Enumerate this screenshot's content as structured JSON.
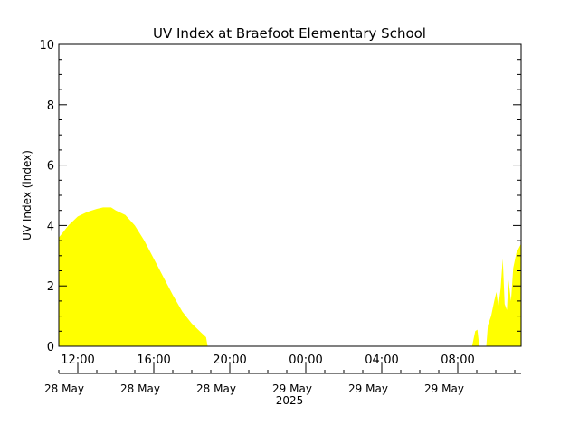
{
  "chart_data": {
    "type": "area",
    "title": "UV Index at Braefoot Elementary School",
    "ylabel": "UV Index (index)",
    "year_label": "2025",
    "ylim": [
      0,
      10
    ],
    "y_ticks": [
      0,
      2,
      4,
      6,
      8,
      10
    ],
    "x_range": [
      "2025-05-28T11:00",
      "2025-05-29T11:20"
    ],
    "x_ticks": [
      {
        "label": "12:00",
        "date": "28 May",
        "t": "2025-05-28T12:00"
      },
      {
        "label": "16:00",
        "date": "28 May",
        "t": "2025-05-28T16:00"
      },
      {
        "label": "20:00",
        "date": "28 May",
        "t": "2025-05-28T20:00"
      },
      {
        "label": "00:00",
        "date": "29 May",
        "t": "2025-05-29T00:00"
      },
      {
        "label": "04:00",
        "date": "29 May",
        "t": "2025-05-29T04:00"
      },
      {
        "label": "08:00",
        "date": "29 May",
        "t": "2025-05-29T08:00"
      }
    ],
    "grid": false,
    "fill_color": "#ffff00",
    "series": [
      {
        "points": [
          [
            "2025-05-28T11:00",
            3.6
          ],
          [
            "2025-05-28T11:15",
            3.8
          ],
          [
            "2025-05-28T11:30",
            4.0
          ],
          [
            "2025-05-28T11:45",
            4.15
          ],
          [
            "2025-05-28T12:00",
            4.3
          ],
          [
            "2025-05-28T12:30",
            4.45
          ],
          [
            "2025-05-28T13:00",
            4.55
          ],
          [
            "2025-05-28T13:20",
            4.6
          ],
          [
            "2025-05-28T13:45",
            4.6
          ],
          [
            "2025-05-28T14:00",
            4.5
          ],
          [
            "2025-05-28T14:30",
            4.35
          ],
          [
            "2025-05-28T15:00",
            4.0
          ],
          [
            "2025-05-28T15:30",
            3.5
          ],
          [
            "2025-05-28T16:00",
            2.9
          ],
          [
            "2025-05-28T16:30",
            2.3
          ],
          [
            "2025-05-28T17:00",
            1.7
          ],
          [
            "2025-05-28T17:30",
            1.15
          ],
          [
            "2025-05-28T18:00",
            0.75
          ],
          [
            "2025-05-28T18:30",
            0.45
          ],
          [
            "2025-05-28T18:45",
            0.3
          ],
          [
            "2025-05-28T18:50",
            0.0
          ],
          [
            "2025-05-29T08:45",
            0.0
          ],
          [
            "2025-05-29T08:55",
            0.5
          ],
          [
            "2025-05-29T09:02",
            0.55
          ],
          [
            "2025-05-29T09:08",
            0.0
          ],
          [
            "2025-05-29T09:30",
            0.0
          ],
          [
            "2025-05-29T09:35",
            0.7
          ],
          [
            "2025-05-29T09:45",
            1.0
          ],
          [
            "2025-05-29T09:55",
            1.5
          ],
          [
            "2025-05-29T10:02",
            1.8
          ],
          [
            "2025-05-29T10:08",
            1.3
          ],
          [
            "2025-05-29T10:15",
            1.9
          ],
          [
            "2025-05-29T10:22",
            2.9
          ],
          [
            "2025-05-29T10:28",
            1.4
          ],
          [
            "2025-05-29T10:35",
            1.2
          ],
          [
            "2025-05-29T10:40",
            2.2
          ],
          [
            "2025-05-29T10:48",
            1.5
          ],
          [
            "2025-05-29T10:55",
            2.6
          ],
          [
            "2025-05-29T11:05",
            3.1
          ],
          [
            "2025-05-29T11:20",
            3.4
          ]
        ]
      }
    ]
  }
}
